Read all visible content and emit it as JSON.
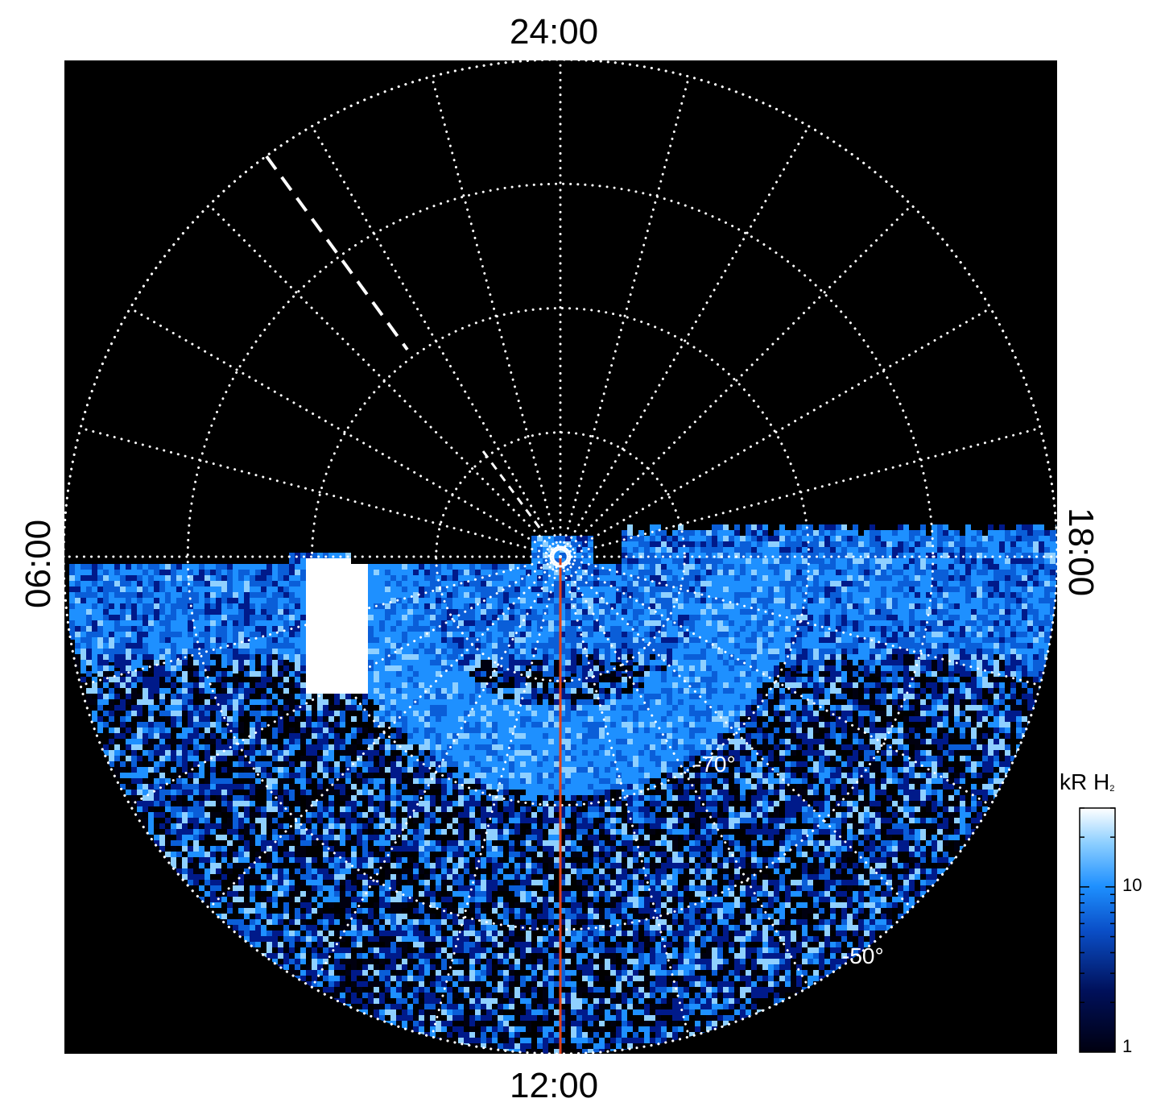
{
  "map": {
    "type": "polar-projection",
    "hemisphere": "south",
    "local_time_labels": {
      "top": "24:00",
      "bottom": "12:00",
      "left": "06:00",
      "right": "18:00"
    },
    "latitude_labels": [
      "-70°",
      "-50°"
    ],
    "background_color": "#000000",
    "grid_color": "#ffffff",
    "reference_line_color": "#e0421a",
    "meridian_spacing_hours": 1,
    "colatitude_rings_deg": [
      10,
      20,
      30,
      40
    ]
  },
  "colorbar": {
    "title_main": "kR H",
    "title_sub": "2",
    "scale": "log",
    "range": [
      1,
      30
    ],
    "ticks": [
      {
        "value": 1,
        "label": "1"
      },
      {
        "value": 10,
        "label": "10"
      }
    ],
    "colors": [
      "#000010",
      "#001a8a",
      "#0a5ed8",
      "#1e90ff",
      "#8fd0ff",
      "#ffffff"
    ]
  }
}
